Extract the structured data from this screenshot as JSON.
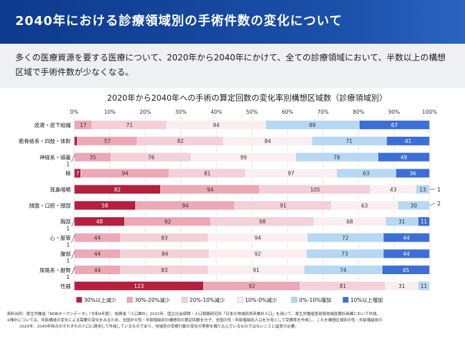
{
  "header": {
    "title": "2040年における診療領域別の手術件数の変化について"
  },
  "summary": {
    "text": "多くの医療資源を要する医療について、2020年から2040年にかけて、全ての診療領域において、半数以上の構想区域で手術件数が少なくなる。"
  },
  "footnotes": {
    "source": "資料出所：厚生労働省「NDBオープンデータ」（令和4年度）、総務省「人口推計」2022年、国立社会保障・人口問題研究所「日本の地域別将来推計人口」を用いて、厚生労働省医政局地域医療計画課において作成。",
    "note1": "※推計については、年齢構成の変化による需要の変化をみるため、全国計の性・年齢階級別の構想別の算定回数を分子、全国の性・年齢階級別人口を分母として受療率を作成し、これを構想区域別の性・年齢階級別の",
    "note2": "2020年、2040年時点のそれぞれの人口に適用して作成しているものであり、地域別の受療行動の変化の実態を織り込んでいるものではないことに留意が必要。"
  },
  "colors": {
    "dec30": "#b5203f",
    "dec20_30": "#eca8b6",
    "dec10_20": "#f4d0d8",
    "dec0_10": "#fbeef1",
    "inc0_10": "#b7d7f3",
    "inc10": "#3c6fd6"
  },
  "chart_data": {
    "type": "bar",
    "orientation": "horizontal",
    "stacked": "percent",
    "title": "2020年から2040年への手術の算定回数の変化率別構想区域数（診療領域別）",
    "x_axis": {
      "min": 0,
      "max": 100,
      "step": 10,
      "tick_labels": [
        "0%",
        "10%",
        "20%",
        "30%",
        "40%",
        "50%",
        "60%",
        "70%",
        "80%",
        "90%",
        "100%"
      ]
    },
    "grid": true,
    "legend_position": "bottom",
    "categories": [
      "皮膚・皮下組織",
      "筋骨格系・四肢・体幹",
      "神経系・頭蓋",
      "眼",
      "耳鼻咽喉",
      "顔面・口腔・頸部",
      "胸部",
      "心・脈管",
      "腹部",
      "尿路系・副腎",
      "性器"
    ],
    "series": [
      {
        "name": "30%以上減少",
        "color_key": "dec30",
        "values": [
          0,
          3,
          0,
          7,
          82,
          58,
          48,
          0,
          0,
          0,
          123
        ]
      },
      {
        "name": "30%-20%減少",
        "color_key": "dec20_30",
        "values": [
          17,
          57,
          35,
          94,
          94,
          94,
          82,
          44,
          44,
          44,
          92
        ]
      },
      {
        "name": "20%-10%減少",
        "color_key": "dec10_20",
        "values": [
          71,
          82,
          76,
          81,
          105,
          91,
          98,
          83,
          84,
          83,
          81
        ]
      },
      {
        "name": "10%-0%減少",
        "color_key": "dec0_10",
        "values": [
          94,
          84,
          99,
          97,
          43,
          63,
          68,
          94,
          92,
          91,
          31
        ]
      },
      {
        "name": "0%-10%増加",
        "color_key": "inc0_10",
        "values": [
          89,
          71,
          78,
          63,
          13,
          30,
          31,
          72,
          73,
          74,
          11
        ]
      },
      {
        "name": "10%以上増加",
        "color_key": "inc10",
        "values": [
          67,
          41,
          49,
          36,
          0,
          0,
          11,
          44,
          44,
          45,
          0
        ]
      }
    ],
    "outside_labels": [
      {
        "category": "神経系・頭蓋",
        "value": "1"
      },
      {
        "category": "耳鼻咽喉",
        "value": "1"
      },
      {
        "category": "顔面・口腔・頸部",
        "value": "2"
      },
      {
        "category": "胸部",
        "value": "1"
      },
      {
        "category": "心・脈管",
        "value": "1"
      },
      {
        "category": "腹部",
        "value": "1"
      },
      {
        "category": "尿路系・副腎",
        "value": "1"
      }
    ]
  }
}
